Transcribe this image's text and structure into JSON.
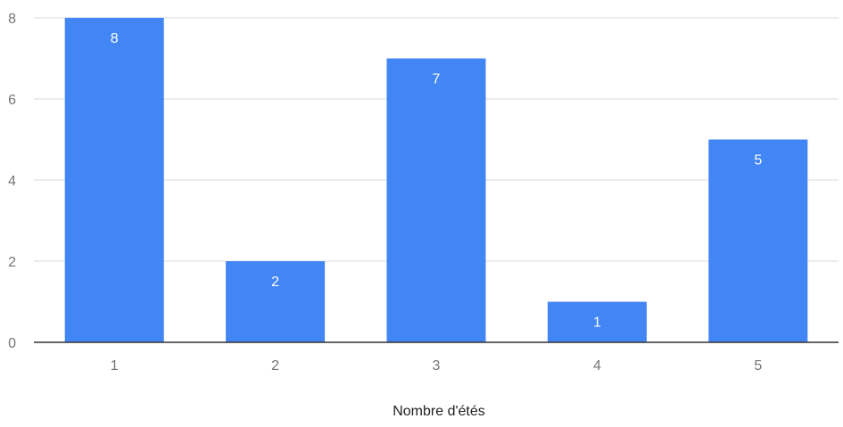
{
  "chart_data": {
    "type": "bar",
    "title": "",
    "xlabel": "Nombre d'étés",
    "ylabel": "",
    "categories": [
      "1",
      "2",
      "3",
      "4",
      "5"
    ],
    "values": [
      8,
      2,
      7,
      1,
      5
    ],
    "ylim": [
      0,
      8
    ],
    "yticks": [
      0,
      2,
      4,
      6,
      8
    ],
    "grid": true,
    "legend": "none",
    "bar_color": "#4285F4",
    "gridline_color": "#D9D9D9",
    "axis_color": "#333333",
    "data_label_color": "#FFFFFF"
  }
}
